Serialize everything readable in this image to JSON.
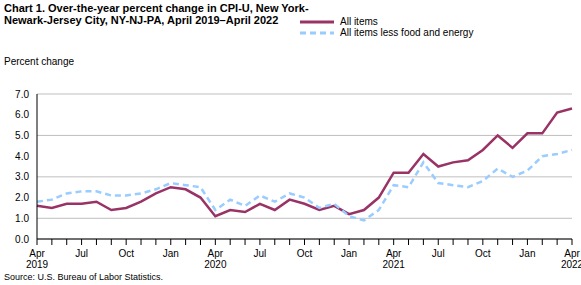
{
  "chart_data": {
    "type": "line",
    "title": "Chart 1. Over-the-year percent change in CPI-U, New York-Newark-Jersey  City, NY-NJ-PA, April 2019–April 2022",
    "y_label": "Percent change",
    "source": "Source: U.S. Bureau of Labor Statistics.",
    "categories": [
      "Apr 2019",
      null,
      null,
      "Jul",
      null,
      null,
      "Oct",
      null,
      null,
      "Jan",
      null,
      null,
      "Apr 2020",
      null,
      null,
      "Jul",
      null,
      null,
      "Oct",
      null,
      null,
      "Jan",
      null,
      null,
      "Apr 2021",
      null,
      null,
      "Jul",
      null,
      null,
      "Oct",
      null,
      null,
      "Jan",
      null,
      null,
      "Apr 2022"
    ],
    "series": [
      {
        "name": "All items",
        "color": "#993366",
        "line_style": "solid",
        "values": [
          1.6,
          1.5,
          1.7,
          1.7,
          1.8,
          1.4,
          1.5,
          1.8,
          2.2,
          2.5,
          2.4,
          2.0,
          1.1,
          1.4,
          1.3,
          1.7,
          1.4,
          1.9,
          1.7,
          1.4,
          1.6,
          1.2,
          1.4,
          2.0,
          3.2,
          3.2,
          4.1,
          3.5,
          3.7,
          3.8,
          4.3,
          5.0,
          4.4,
          5.1,
          5.1,
          6.1,
          6.3
        ]
      },
      {
        "name": "All items less food and energy",
        "color": "#99ccff",
        "line_style": "dashed",
        "values": [
          1.8,
          1.9,
          2.2,
          2.3,
          2.3,
          2.1,
          2.1,
          2.2,
          2.4,
          2.7,
          2.6,
          2.5,
          1.4,
          1.9,
          1.6,
          2.1,
          1.8,
          2.2,
          2.0,
          1.5,
          1.7,
          1.1,
          0.9,
          1.4,
          2.6,
          2.5,
          3.7,
          2.7,
          2.6,
          2.5,
          2.8,
          3.4,
          3.0,
          3.3,
          4.0,
          4.1,
          4.3
        ]
      }
    ],
    "ylim": [
      0,
      7
    ],
    "yticks": [
      {
        "value": 0,
        "label": "0.0"
      },
      {
        "value": 1,
        "label": "1.0"
      },
      {
        "value": 2,
        "label": "2.0"
      },
      {
        "value": 3,
        "label": "3.0"
      },
      {
        "value": 4,
        "label": "4.0"
      },
      {
        "value": 5,
        "label": "5.0"
      },
      {
        "value": 6,
        "label": "6.0"
      },
      {
        "value": 7,
        "label": "7.0"
      }
    ],
    "grid": true,
    "legend": "top"
  }
}
